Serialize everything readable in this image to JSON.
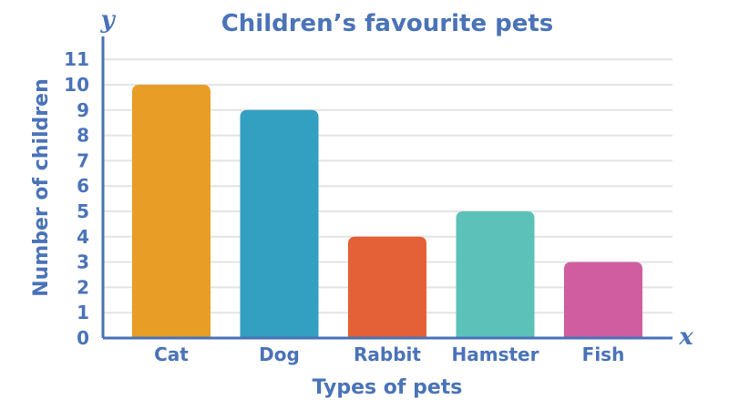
{
  "chart_data": {
    "type": "bar",
    "title": "Children’s favourite pets",
    "xlabel": "Types of pets",
    "ylabel": "Number of children",
    "x_axis_letter": "x",
    "y_axis_letter": "y",
    "categories": [
      "Cat",
      "Dog",
      "Rabbit",
      "Hamster",
      "Fish"
    ],
    "values": [
      10,
      9,
      4,
      5,
      3
    ],
    "colors": [
      "#e89d26",
      "#339fc1",
      "#e46036",
      "#5cc1b8",
      "#d05da0"
    ],
    "ylim": [
      0,
      11
    ],
    "yticks": [
      "0",
      "1",
      "2",
      "3",
      "4",
      "5",
      "6",
      "7",
      "8",
      "9",
      "10",
      "11"
    ],
    "grid": true,
    "legend": "none",
    "axis_color": "#4a73b8",
    "grid_color": "#e4e4e4"
  }
}
